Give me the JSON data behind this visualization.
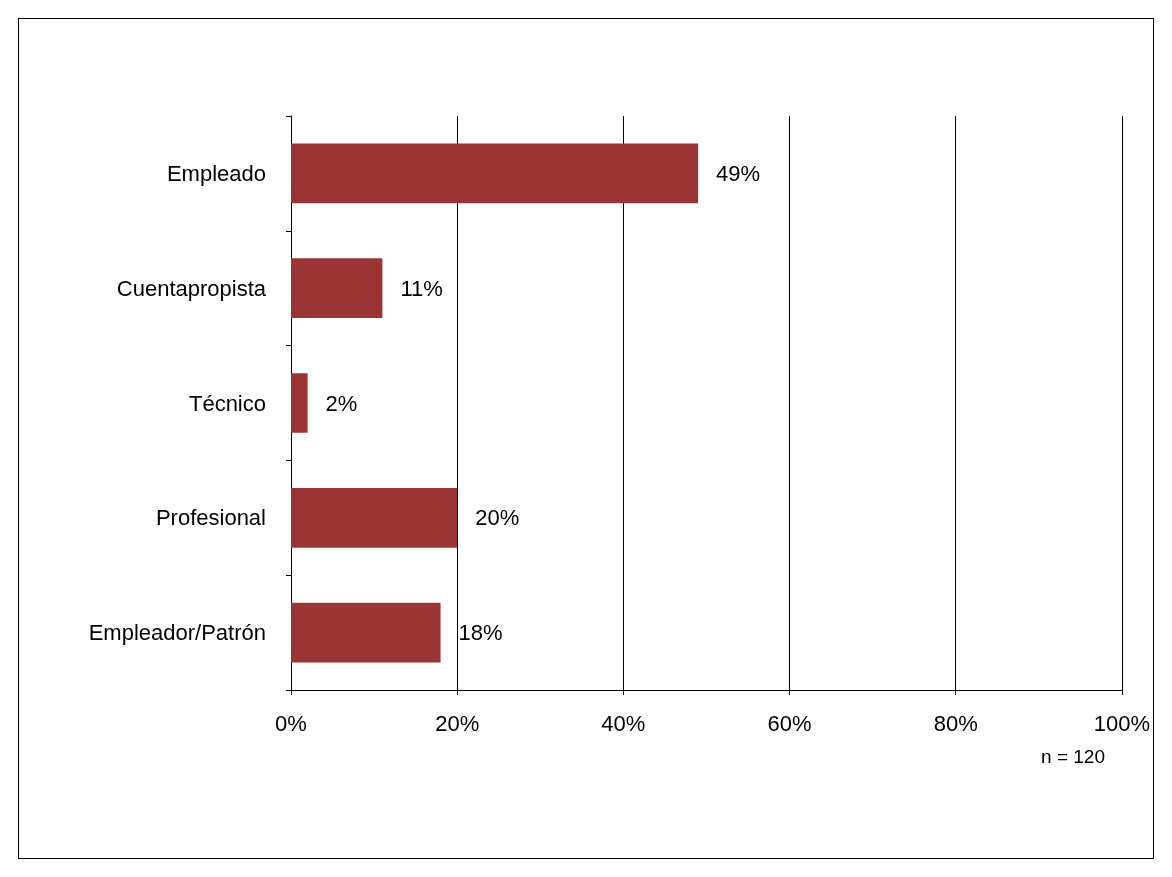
{
  "chart_data": {
    "type": "bar",
    "orientation": "horizontal",
    "categories": [
      "Empleado",
      "Cuentapropista",
      "Técnico",
      "Profesional",
      "Empleador/Patrón"
    ],
    "values": [
      49,
      11,
      2,
      20,
      18
    ],
    "value_labels": [
      "49%",
      "11%",
      "2%",
      "20%",
      "18%"
    ],
    "color": "#9b3535",
    "xlim": [
      0,
      100
    ],
    "xticks": [
      {
        "value": 0,
        "label": "0%"
      },
      {
        "value": 20,
        "label": "20%"
      },
      {
        "value": 40,
        "label": "40%"
      },
      {
        "value": 60,
        "label": "60%"
      },
      {
        "value": 80,
        "label": "80%"
      },
      {
        "value": 100,
        "label": "100%"
      }
    ],
    "grid": "x",
    "annotations": [
      "n = 120"
    ]
  }
}
